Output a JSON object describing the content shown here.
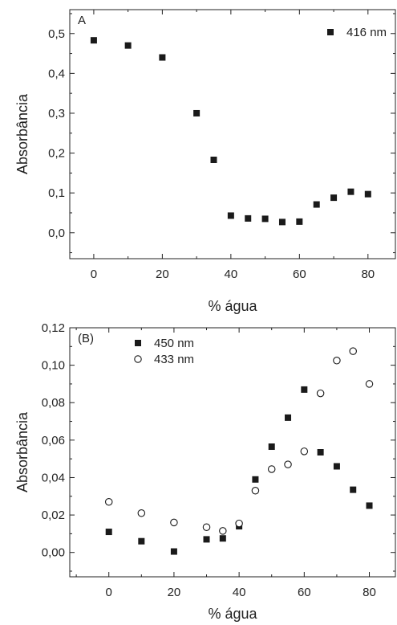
{
  "chart_data": [
    {
      "type": "scatter",
      "panel_label": "A",
      "xlabel": "% água",
      "ylabel": "Absorbância",
      "xlim": [
        -7,
        88
      ],
      "ylim": [
        -0.065,
        0.56
      ],
      "xticks": [
        0,
        20,
        40,
        60,
        80
      ],
      "xtick_labels": [
        "0",
        "20",
        "40",
        "60",
        "80"
      ],
      "yticks": [
        0.0,
        0.1,
        0.2,
        0.3,
        0.4,
        0.5
      ],
      "ytick_labels": [
        "0,0",
        "0,1",
        "0,2",
        "0,3",
        "0,4",
        "0,5"
      ],
      "grid": false,
      "legend_position": "top-right",
      "series": [
        {
          "name": "416 nm",
          "marker": "filled-square",
          "color": "#1a1a1a",
          "x": [
            0,
            10,
            20,
            30,
            35,
            40,
            45,
            50,
            55,
            60,
            65,
            70,
            75,
            80
          ],
          "y": [
            0.483,
            0.47,
            0.44,
            0.3,
            0.183,
            0.043,
            0.036,
            0.035,
            0.027,
            0.028,
            0.071,
            0.088,
            0.103,
            0.097
          ]
        }
      ]
    },
    {
      "type": "scatter",
      "panel_label": "(B)",
      "xlabel": "% água",
      "ylabel": "Absorbância",
      "xlim": [
        -12,
        88
      ],
      "ylim": [
        -0.013,
        0.12
      ],
      "xticks": [
        0,
        20,
        40,
        60,
        80
      ],
      "xtick_labels": [
        "0",
        "20",
        "40",
        "60",
        "80"
      ],
      "yticks": [
        0.0,
        0.02,
        0.04,
        0.06,
        0.08,
        0.1,
        0.12
      ],
      "ytick_labels": [
        "0,00",
        "0,02",
        "0,04",
        "0,06",
        "0,08",
        "0,10",
        "0,12"
      ],
      "grid": false,
      "legend_position": "top-left",
      "series": [
        {
          "name": "450 nm",
          "marker": "filled-square",
          "color": "#1a1a1a",
          "x": [
            0,
            10,
            20,
            30,
            35,
            40,
            45,
            50,
            55,
            60,
            65,
            70,
            75,
            80
          ],
          "y": [
            0.011,
            0.006,
            0.0005,
            0.007,
            0.0075,
            0.014,
            0.039,
            0.0565,
            0.072,
            0.087,
            0.0535,
            0.046,
            0.0335,
            0.025
          ]
        },
        {
          "name": "433 nm",
          "marker": "open-circle",
          "color": "#1a1a1a",
          "x": [
            0,
            10,
            20,
            30,
            35,
            40,
            45,
            50,
            55,
            60,
            65,
            70,
            75,
            80
          ],
          "y": [
            0.027,
            0.021,
            0.016,
            0.0135,
            0.0115,
            0.0155,
            0.033,
            0.0445,
            0.047,
            0.054,
            0.085,
            0.1025,
            0.1075,
            0.09
          ]
        }
      ]
    }
  ]
}
